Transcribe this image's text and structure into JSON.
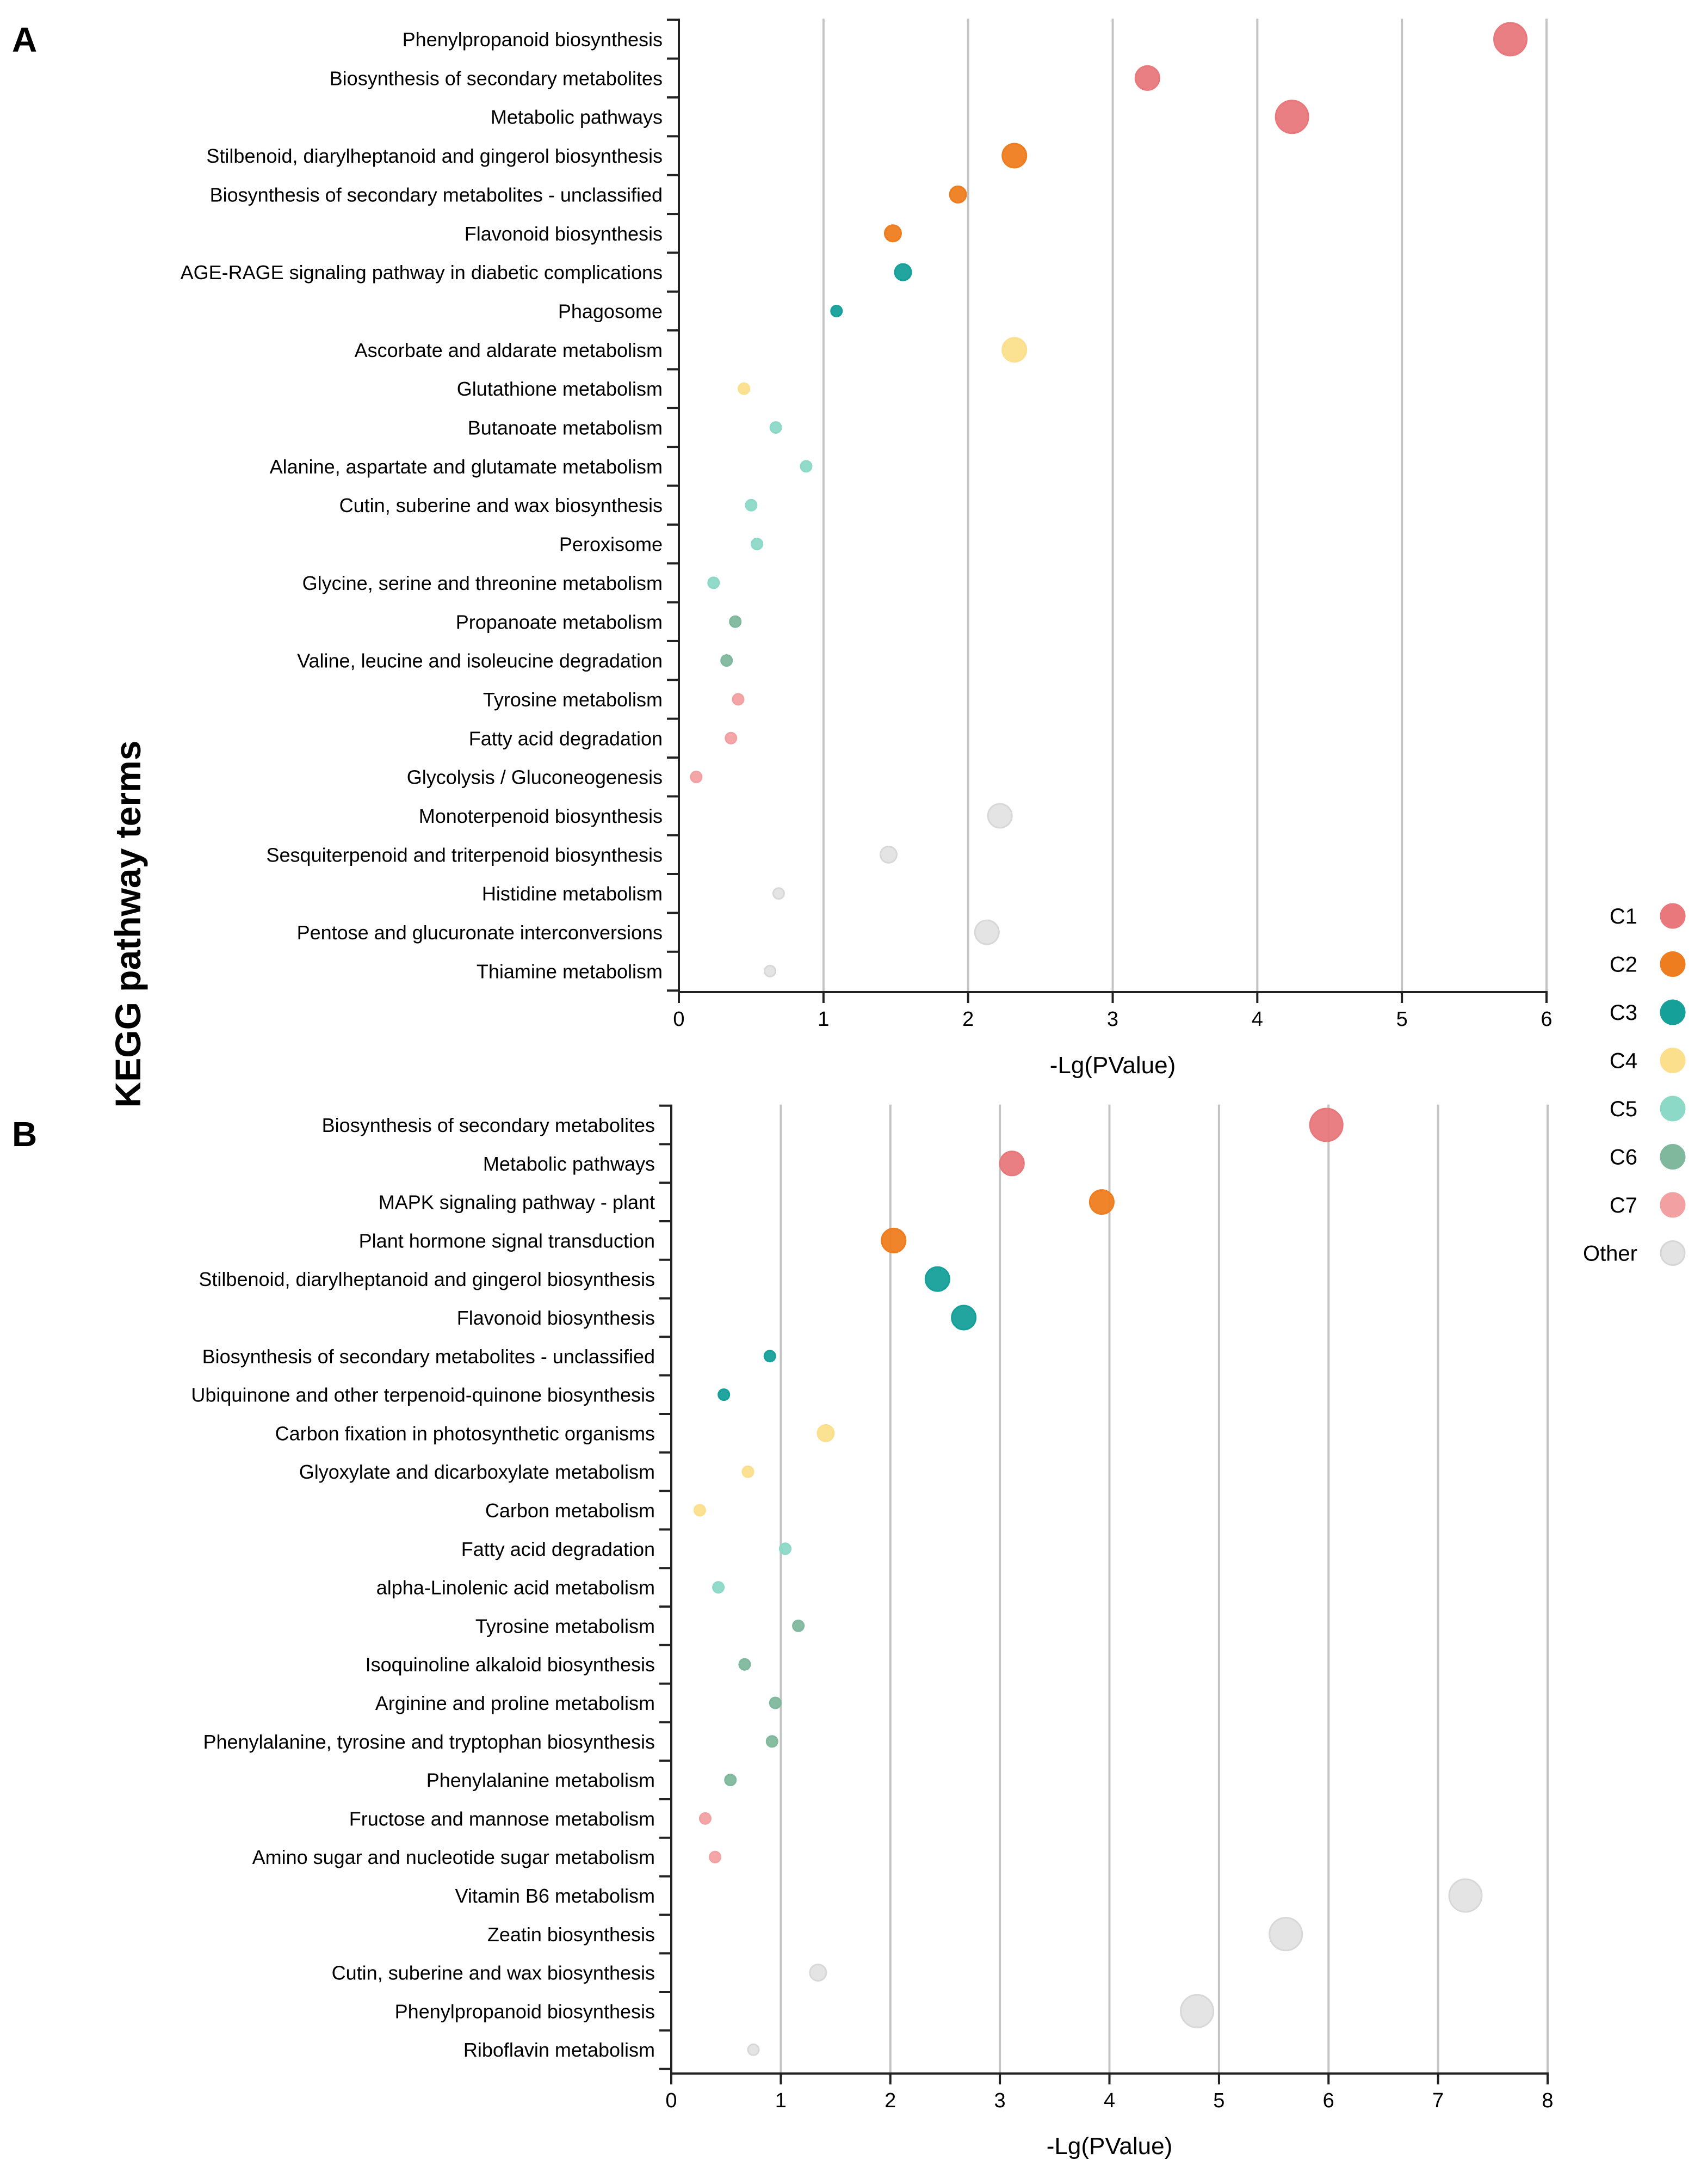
{
  "y_axis_title": "KEGG pathway terms",
  "categories": [
    {
      "name": "C1",
      "color": "#e8787c"
    },
    {
      "name": "C2",
      "color": "#ee7d1f"
    },
    {
      "name": "C3",
      "color": "#16a09a"
    },
    {
      "name": "C4",
      "color": "#fbdf8c"
    },
    {
      "name": "C5",
      "color": "#8cd9c7"
    },
    {
      "name": "C6",
      "color": "#80b89d"
    },
    {
      "name": "C7",
      "color": "#f3a0a2"
    },
    {
      "name": "Other",
      "color": "#e3e3e3"
    }
  ],
  "chart_data": [
    {
      "panel": "A",
      "type": "scatter",
      "xlabel": "-Lg(PValue)",
      "ylabel": "KEGG pathway terms",
      "xlim": [
        0,
        6
      ],
      "xticks": [
        "0",
        "1",
        "2",
        "3",
        "4",
        "5",
        "6"
      ],
      "grid": "vertical",
      "points": [
        {
          "term": "Phenylpropanoid biosynthesis",
          "x": 5.75,
          "category": "C1",
          "size": "large"
        },
        {
          "term": "Biosynthesis of secondary metabolites",
          "x": 3.24,
          "category": "C1",
          "size": "medium"
        },
        {
          "term": "Metabolic pathways",
          "x": 4.24,
          "category": "C1",
          "size": "large"
        },
        {
          "term": "Stilbenoid, diarylheptanoid and gingerol biosynthesis",
          "x": 2.32,
          "category": "C2",
          "size": "medium"
        },
        {
          "term": "Biosynthesis of secondary metabolites - unclassified",
          "x": 1.93,
          "category": "C2",
          "size": "small"
        },
        {
          "term": "Flavonoid biosynthesis",
          "x": 1.48,
          "category": "C2",
          "size": "small"
        },
        {
          "term": "AGE-RAGE signaling pathway in diabetic complications",
          "x": 1.55,
          "category": "C3",
          "size": "small"
        },
        {
          "term": "Phagosome",
          "x": 1.09,
          "category": "C3",
          "size": "tiny"
        },
        {
          "term": "Ascorbate and aldarate metabolism",
          "x": 2.32,
          "category": "C4",
          "size": "medium"
        },
        {
          "term": "Glutathione metabolism",
          "x": 0.45,
          "category": "C4",
          "size": "tiny"
        },
        {
          "term": "Butanoate metabolism",
          "x": 0.67,
          "category": "C5",
          "size": "tiny"
        },
        {
          "term": "Alanine, aspartate and glutamate metabolism",
          "x": 0.88,
          "category": "C5",
          "size": "tiny"
        },
        {
          "term": "Cutin, suberine and wax biosynthesis",
          "x": 0.5,
          "category": "C5",
          "size": "tiny"
        },
        {
          "term": "Peroxisome",
          "x": 0.54,
          "category": "C5",
          "size": "tiny"
        },
        {
          "term": "Glycine, serine and threonine metabolism",
          "x": 0.24,
          "category": "C5",
          "size": "tiny"
        },
        {
          "term": "Propanoate metabolism",
          "x": 0.39,
          "category": "C6",
          "size": "tiny"
        },
        {
          "term": "Valine, leucine and isoleucine degradation",
          "x": 0.33,
          "category": "C6",
          "size": "tiny"
        },
        {
          "term": "Tyrosine metabolism",
          "x": 0.41,
          "category": "C7",
          "size": "tiny"
        },
        {
          "term": "Fatty acid degradation",
          "x": 0.36,
          "category": "C7",
          "size": "tiny"
        },
        {
          "term": "Glycolysis / Gluconeogenesis",
          "x": 0.12,
          "category": "C7",
          "size": "tiny"
        },
        {
          "term": "Monoterpenoid biosynthesis",
          "x": 2.22,
          "category": "Other",
          "size": "medium"
        },
        {
          "term": "Sesquiterpenoid and triterpenoid biosynthesis",
          "x": 1.45,
          "category": "Other",
          "size": "small"
        },
        {
          "term": "Histidine metabolism",
          "x": 0.69,
          "category": "Other",
          "size": "tiny"
        },
        {
          "term": "Pentose and glucuronate interconversions",
          "x": 2.13,
          "category": "Other",
          "size": "medium"
        },
        {
          "term": "Thiamine metabolism",
          "x": 0.63,
          "category": "Other",
          "size": "tiny"
        }
      ]
    },
    {
      "panel": "B",
      "type": "scatter",
      "xlabel": "-Lg(PValue)",
      "ylabel": "KEGG pathway terms",
      "xlim": [
        0,
        8
      ],
      "xticks": [
        "0",
        "1",
        "2",
        "3",
        "4",
        "5",
        "6",
        "7",
        "8"
      ],
      "grid": "vertical",
      "points": [
        {
          "term": "Biosynthesis of secondary metabolites",
          "x": 5.98,
          "category": "C1",
          "size": "large"
        },
        {
          "term": "Metabolic pathways",
          "x": 3.11,
          "category": "C1",
          "size": "medium"
        },
        {
          "term": "MAPK signaling pathway - plant",
          "x": 3.93,
          "category": "C2",
          "size": "medium"
        },
        {
          "term": "Plant hormone signal transduction",
          "x": 2.03,
          "category": "C2",
          "size": "medium"
        },
        {
          "term": "Stilbenoid, diarylheptanoid and gingerol biosynthesis",
          "x": 2.43,
          "category": "C3",
          "size": "medium"
        },
        {
          "term": "Flavonoid biosynthesis",
          "x": 2.67,
          "category": "C3",
          "size": "medium"
        },
        {
          "term": "Biosynthesis of secondary metabolites - unclassified",
          "x": 0.9,
          "category": "C3",
          "size": "tiny"
        },
        {
          "term": "Ubiquinone and other terpenoid-quinone biosynthesis",
          "x": 0.48,
          "category": "C3",
          "size": "tiny"
        },
        {
          "term": "Carbon fixation in photosynthetic organisms",
          "x": 1.41,
          "category": "C4",
          "size": "small"
        },
        {
          "term": "Glyoxylate and dicarboxylate metabolism",
          "x": 0.7,
          "category": "C4",
          "size": "tiny"
        },
        {
          "term": "Carbon metabolism",
          "x": 0.26,
          "category": "C4",
          "size": "tiny"
        },
        {
          "term": "Fatty acid degradation",
          "x": 1.04,
          "category": "C5",
          "size": "tiny"
        },
        {
          "term": "alpha-Linolenic acid metabolism",
          "x": 0.43,
          "category": "C5",
          "size": "tiny"
        },
        {
          "term": "Tyrosine metabolism",
          "x": 1.16,
          "category": "C6",
          "size": "tiny"
        },
        {
          "term": "Isoquinoline alkaloid biosynthesis",
          "x": 0.67,
          "category": "C6",
          "size": "tiny"
        },
        {
          "term": "Arginine and proline metabolism",
          "x": 0.95,
          "category": "C6",
          "size": "tiny"
        },
        {
          "term": "Phenylalanine, tyrosine and tryptophan biosynthesis",
          "x": 0.92,
          "category": "C6",
          "size": "tiny"
        },
        {
          "term": "Phenylalanine metabolism",
          "x": 0.54,
          "category": "C6",
          "size": "tiny"
        },
        {
          "term": "Fructose and mannose metabolism",
          "x": 0.31,
          "category": "C7",
          "size": "tiny"
        },
        {
          "term": "Amino sugar and nucleotide sugar metabolism",
          "x": 0.4,
          "category": "C7",
          "size": "tiny"
        },
        {
          "term": "Vitamin B6 metabolism",
          "x": 7.25,
          "category": "Other",
          "size": "large"
        },
        {
          "term": "Zeatin biosynthesis",
          "x": 5.61,
          "category": "Other",
          "size": "large"
        },
        {
          "term": "Cutin, suberine and wax biosynthesis",
          "x": 1.34,
          "category": "Other",
          "size": "small"
        },
        {
          "term": "Phenylpropanoid biosynthesis",
          "x": 4.8,
          "category": "Other",
          "size": "large"
        },
        {
          "term": "Riboflavin metabolism",
          "x": 0.75,
          "category": "Other",
          "size": "tiny"
        }
      ]
    }
  ]
}
